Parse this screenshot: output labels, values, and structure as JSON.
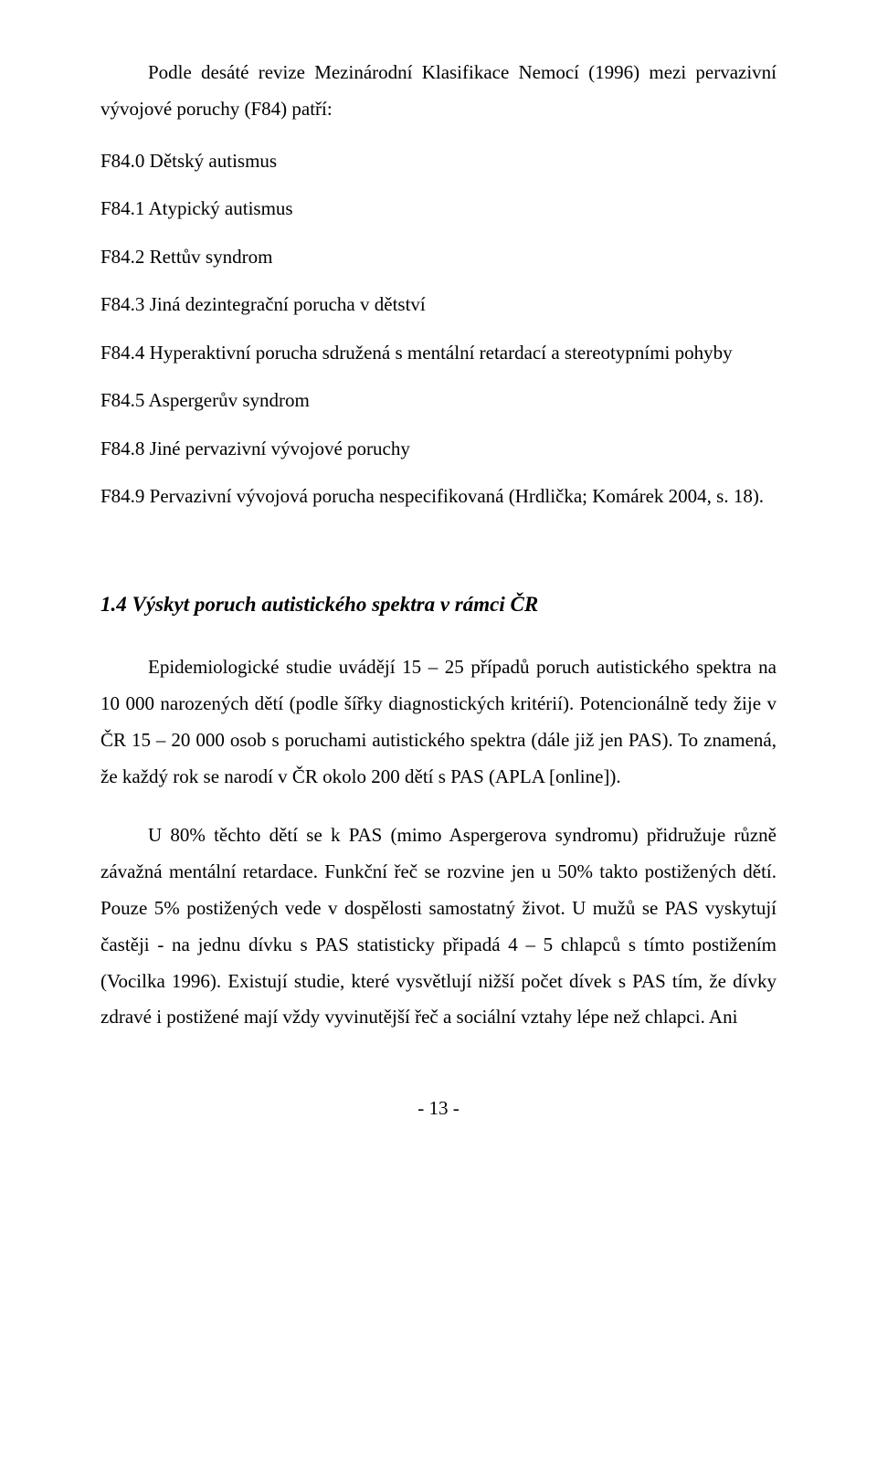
{
  "intro": "Podle desáté revize Mezinárodní Klasifikace Nemocí (1996) mezi pervazivní vývojové poruchy (F84) patří:",
  "list": {
    "i0": "F84.0 Dětský autismus",
    "i1": "F84.1 Atypický autismus",
    "i2": "F84.2 Rettův syndrom",
    "i3": "F84.3 Jiná dezintegrační porucha v dětství",
    "i4": "F84.4 Hyperaktivní porucha sdružená s mentální retardací a stereotypními pohyby",
    "i5": "F84.5 Aspergerův syndrom",
    "i6": "F84.8 Jiné pervazivní vývojové poruchy",
    "i7": "F84.9 Pervazivní vývojová porucha nespecifikovaná (Hrdlička; Komárek 2004, s. 18)."
  },
  "heading": "1.4  Výskyt poruch autistického spektra v rámci ČR",
  "p1": "Epidemiologické studie uvádějí 15 – 25 případů poruch autistického spektra na 10 000 narozených dětí (podle šířky diagnostických kritérií). Potencionálně tedy žije v ČR 15 – 20 000 osob s poruchami autistického spektra (dále již jen PAS). To znamená, že každý rok se narodí v ČR okolo 200 dětí s PAS (APLA [online]).",
  "p2": "U 80% těchto dětí se k PAS (mimo Aspergerova syndromu) přidružuje různě závažná mentální retardace. Funkční řeč se rozvine jen u 50% takto postižených dětí. Pouze 5% postižených vede v dospělosti samostatný život. U mužů se PAS vyskytují častěji - na jednu dívku s PAS statisticky připadá 4 – 5 chlapců s tímto postižením (Vocilka 1996). Existují studie, které vysvětlují nižší počet dívek s PAS tím, že dívky zdravé i postižené mají vždy vyvinutější řeč a sociální vztahy lépe než chlapci. Ani",
  "pagenum": "- 13 -"
}
